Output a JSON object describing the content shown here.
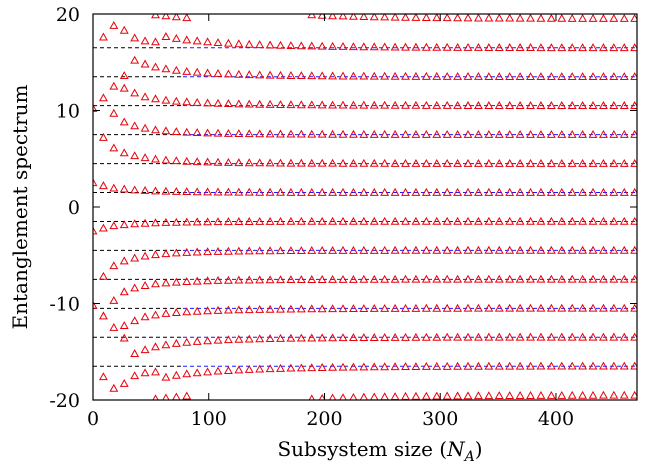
{
  "chart_data": {
    "type": "scatter",
    "xlabel_text": "Subsystem size (",
    "xlabel_symbol": "N",
    "xlabel_subscript": "A",
    "xlabel_close": ")",
    "ylabel": "Entanglement spectrum",
    "xlim": [
      0,
      470
    ],
    "ylim": [
      -20,
      20
    ],
    "x_ticks": [
      {
        "value": 0,
        "label": "0"
      },
      {
        "value": 100,
        "label": "100"
      },
      {
        "value": 200,
        "label": "200"
      },
      {
        "value": 300,
        "label": "300"
      },
      {
        "value": 400,
        "label": "400"
      }
    ],
    "y_ticks": [
      {
        "value": -20,
        "label": "-20"
      },
      {
        "value": -10,
        "label": "-10"
      },
      {
        "value": 0,
        "label": "0"
      },
      {
        "value": 10,
        "label": "10"
      },
      {
        "value": 20,
        "label": "20"
      }
    ],
    "grid": false,
    "marker_color": "#e8000b",
    "reference_line_color": "#1a1aff",
    "reference_line_alt_color": "#000000",
    "reference_levels": [
      -16.5,
      -13.5,
      -10.5,
      -7.5,
      -4.5,
      -1.5,
      1.5,
      4.5,
      7.5,
      10.5,
      13.5,
      16.5
    ],
    "x_sample_points": [
      0,
      9,
      18,
      27,
      36,
      45,
      54,
      63,
      72,
      81,
      90,
      99,
      108,
      117,
      126,
      135,
      144,
      153,
      162,
      171,
      180,
      189,
      198,
      207,
      216,
      225,
      234,
      243,
      252,
      261,
      270,
      279,
      288,
      297,
      306,
      315,
      324,
      333,
      342,
      351,
      360,
      369,
      378,
      387,
      396,
      405,
      414,
      423,
      432,
      441,
      450,
      459,
      468
    ],
    "series": [
      {
        "level": 1.5,
        "y": [
          2.5,
          2.2,
          1.95,
          1.85,
          1.75,
          1.7,
          1.65,
          1.62,
          1.6,
          1.58,
          1.56,
          1.55,
          1.54,
          1.53,
          1.52,
          1.52,
          1.51,
          1.51,
          1.51,
          1.5,
          1.5,
          1.5,
          1.5,
          1.5,
          1.5,
          1.5,
          1.5,
          1.5,
          1.5,
          1.5,
          1.5,
          1.5,
          1.5,
          1.5,
          1.5,
          1.5,
          1.5,
          1.5,
          1.5,
          1.5,
          1.5,
          1.5,
          1.5,
          1.5,
          1.5,
          1.5,
          1.5,
          1.5,
          1.5,
          1.5,
          1.5,
          1.5,
          1.5
        ]
      },
      {
        "level": -1.5,
        "y": [
          -2.5,
          -2.2,
          -1.95,
          -1.85,
          -1.75,
          -1.7,
          -1.65,
          -1.62,
          -1.6,
          -1.58,
          -1.56,
          -1.55,
          -1.54,
          -1.53,
          -1.52,
          -1.52,
          -1.51,
          -1.51,
          -1.51,
          -1.5,
          -1.5,
          -1.5,
          -1.5,
          -1.5,
          -1.5,
          -1.5,
          -1.5,
          -1.5,
          -1.5,
          -1.5,
          -1.5,
          -1.5,
          -1.5,
          -1.5,
          -1.5,
          -1.5,
          -1.5,
          -1.5,
          -1.5,
          -1.5,
          -1.5,
          -1.5,
          -1.5,
          -1.5,
          -1.5,
          -1.5,
          -1.5,
          -1.5,
          -1.5,
          -1.5,
          -1.5,
          -1.5,
          -1.5
        ]
      },
      {
        "level": 4.5,
        "y": [
          null,
          7.2,
          6.1,
          5.6,
          5.3,
          5.1,
          4.95,
          4.85,
          4.78,
          4.72,
          4.68,
          4.65,
          4.62,
          4.6,
          4.58,
          4.57,
          4.56,
          4.55,
          4.54,
          4.53,
          4.53,
          4.52,
          4.52,
          4.52,
          4.51,
          4.51,
          4.51,
          4.51,
          4.51,
          4.5,
          4.5,
          4.5,
          4.5,
          4.5,
          4.5,
          4.5,
          4.5,
          4.5,
          4.5,
          4.5,
          4.5,
          4.5,
          4.5,
          4.5,
          4.5,
          4.5,
          4.5,
          4.5,
          4.5,
          4.5,
          4.5,
          4.5,
          4.5
        ]
      },
      {
        "level": -4.5,
        "y": [
          null,
          -7.2,
          -6.1,
          -5.6,
          -5.3,
          -5.1,
          -4.95,
          -4.85,
          -4.78,
          -4.72,
          -4.68,
          -4.65,
          -4.62,
          -4.6,
          -4.58,
          -4.57,
          -4.56,
          -4.55,
          -4.54,
          -4.53,
          -4.53,
          -4.52,
          -4.52,
          -4.52,
          -4.51,
          -4.51,
          -4.51,
          -4.51,
          -4.51,
          -4.5,
          -4.5,
          -4.5,
          -4.5,
          -4.5,
          -4.5,
          -4.5,
          -4.5,
          -4.5,
          -4.5,
          -4.5,
          -4.5,
          -4.5,
          -4.5,
          -4.5,
          -4.5,
          -4.5,
          -4.5,
          -4.5,
          -4.5,
          -4.5,
          -4.5,
          -4.5,
          -4.5
        ]
      },
      {
        "level": 7.5,
        "y": [
          null,
          null,
          9.7,
          8.8,
          8.4,
          8.15,
          7.98,
          7.88,
          7.8,
          7.74,
          7.7,
          7.66,
          7.63,
          7.61,
          7.59,
          7.58,
          7.57,
          7.56,
          7.55,
          7.54,
          7.54,
          7.53,
          7.53,
          7.52,
          7.52,
          7.52,
          7.51,
          7.51,
          7.51,
          7.51,
          7.5,
          7.5,
          7.5,
          7.5,
          7.5,
          7.5,
          7.5,
          7.5,
          7.5,
          7.5,
          7.5,
          7.5,
          7.5,
          7.5,
          7.5,
          7.5,
          7.5,
          7.5,
          7.5,
          7.5,
          7.5,
          7.5,
          7.5
        ]
      },
      {
        "level": -7.5,
        "y": [
          null,
          null,
          -9.7,
          -8.8,
          -8.4,
          -8.15,
          -7.98,
          -7.88,
          -7.8,
          -7.74,
          -7.7,
          -7.66,
          -7.63,
          -7.61,
          -7.59,
          -7.58,
          -7.57,
          -7.56,
          -7.55,
          -7.54,
          -7.54,
          -7.53,
          -7.53,
          -7.52,
          -7.52,
          -7.52,
          -7.51,
          -7.51,
          -7.51,
          -7.51,
          -7.5,
          -7.5,
          -7.5,
          -7.5,
          -7.5,
          -7.5,
          -7.5,
          -7.5,
          -7.5,
          -7.5,
          -7.5,
          -7.5,
          -7.5,
          -7.5,
          -7.5,
          -7.5,
          -7.5,
          -7.5,
          -7.5,
          -7.5,
          -7.5,
          -7.5,
          -7.5
        ]
      },
      {
        "level": 10.5,
        "y": [
          10.2,
          11.3,
          12.5,
          12.3,
          11.8,
          11.4,
          11.2,
          11.05,
          10.95,
          10.88,
          10.82,
          10.77,
          10.73,
          10.7,
          10.67,
          10.65,
          10.63,
          10.62,
          10.6,
          10.59,
          10.58,
          10.57,
          10.56,
          10.55,
          10.55,
          10.54,
          10.54,
          10.53,
          10.53,
          10.52,
          10.52,
          10.52,
          10.51,
          10.51,
          10.51,
          10.51,
          10.5,
          10.5,
          10.5,
          10.5,
          10.5,
          10.5,
          10.5,
          10.5,
          10.5,
          10.5,
          10.5,
          10.5,
          10.5,
          10.5,
          10.5,
          10.5,
          10.5
        ]
      },
      {
        "level": -10.5,
        "y": [
          -10.2,
          -11.3,
          -12.5,
          -12.3,
          -11.8,
          -11.4,
          -11.2,
          -11.05,
          -10.95,
          -10.88,
          -10.82,
          -10.77,
          -10.73,
          -10.7,
          -10.67,
          -10.65,
          -10.63,
          -10.62,
          -10.6,
          -10.59,
          -10.58,
          -10.57,
          -10.56,
          -10.55,
          -10.55,
          -10.54,
          -10.54,
          -10.53,
          -10.53,
          -10.52,
          -10.52,
          -10.52,
          -10.51,
          -10.51,
          -10.51,
          -10.51,
          -10.5,
          -10.5,
          -10.5,
          -10.5,
          -10.5,
          -10.5,
          -10.5,
          -10.5,
          -10.5,
          -10.5,
          -10.5,
          -10.5,
          -10.5,
          -10.5,
          -10.5,
          -10.5,
          -10.5
        ]
      },
      {
        "level": 13.5,
        "y": [
          null,
          null,
          null,
          13.6,
          15.2,
          14.8,
          14.5,
          14.3,
          14.15,
          14.03,
          13.95,
          13.88,
          13.82,
          13.77,
          13.73,
          13.7,
          13.67,
          13.65,
          13.63,
          13.61,
          13.6,
          13.59,
          13.58,
          13.57,
          13.56,
          13.55,
          13.55,
          13.54,
          13.54,
          13.53,
          13.53,
          13.52,
          13.52,
          13.52,
          13.51,
          13.51,
          13.51,
          13.51,
          13.5,
          13.5,
          13.5,
          13.5,
          13.5,
          13.5,
          13.5,
          13.5,
          13.5,
          13.5,
          13.5,
          13.5,
          13.5,
          13.5,
          13.5
        ]
      },
      {
        "level": -13.5,
        "y": [
          null,
          null,
          null,
          -13.6,
          -15.2,
          -14.8,
          -14.5,
          -14.3,
          -14.15,
          -14.03,
          -13.95,
          -13.88,
          -13.82,
          -13.77,
          -13.73,
          -13.7,
          -13.67,
          -13.65,
          -13.63,
          -13.61,
          -13.6,
          -13.59,
          -13.58,
          -13.57,
          -13.56,
          -13.55,
          -13.55,
          -13.54,
          -13.54,
          -13.53,
          -13.53,
          -13.52,
          -13.52,
          -13.52,
          -13.51,
          -13.51,
          -13.51,
          -13.51,
          -13.5,
          -13.5,
          -13.5,
          -13.5,
          -13.5,
          -13.5,
          -13.5,
          -13.5,
          -13.5,
          -13.5,
          -13.5,
          -13.5,
          -13.5,
          -13.5,
          -13.5
        ]
      },
      {
        "level": 16.5,
        "y": [
          null,
          17.6,
          null,
          18.3,
          17.5,
          17.2,
          17.1,
          17.65,
          17.45,
          17.3,
          17.2,
          17.1,
          17.02,
          16.96,
          16.9,
          16.85,
          16.81,
          16.77,
          16.74,
          16.71,
          16.69,
          16.67,
          16.65,
          16.63,
          16.62,
          16.6,
          16.59,
          16.58,
          16.57,
          16.56,
          16.55,
          16.55,
          16.54,
          16.53,
          16.53,
          16.52,
          16.52,
          16.52,
          16.51,
          16.51,
          16.51,
          16.51,
          16.51,
          16.5,
          16.5,
          16.5,
          16.5,
          16.5,
          16.5,
          16.5,
          16.5,
          16.5,
          16.5
        ]
      },
      {
        "level": -16.5,
        "y": [
          null,
          -17.6,
          null,
          -18.3,
          -17.5,
          -17.2,
          -17.1,
          -17.65,
          -17.45,
          -17.3,
          -17.2,
          -17.1,
          -17.02,
          -16.96,
          -16.9,
          -16.85,
          -16.81,
          -16.77,
          -16.74,
          -16.71,
          -16.69,
          -16.67,
          -16.65,
          -16.63,
          -16.62,
          -16.6,
          -16.59,
          -16.58,
          -16.57,
          -16.56,
          -16.55,
          -16.55,
          -16.54,
          -16.53,
          -16.53,
          -16.52,
          -16.52,
          -16.52,
          -16.51,
          -16.51,
          -16.51,
          -16.51,
          -16.51,
          -16.5,
          -16.5,
          -16.5,
          -16.5,
          -16.5,
          -16.5,
          -16.5,
          -16.5,
          -16.5,
          -16.5
        ]
      },
      {
        "level": 19.5,
        "y": [
          null,
          null,
          18.8,
          null,
          null,
          null,
          19.9,
          19.8,
          19.7,
          19.6,
          null,
          null,
          null,
          null,
          null,
          null,
          null,
          null,
          null,
          null,
          null,
          19.9,
          19.85,
          19.8,
          19.78,
          19.75,
          19.72,
          19.7,
          19.68,
          19.66,
          19.64,
          19.63,
          19.62,
          19.61,
          19.6,
          19.59,
          19.58,
          19.57,
          19.57,
          19.56,
          19.56,
          19.55,
          19.55,
          19.54,
          19.54,
          19.54,
          19.53,
          19.53,
          19.53,
          19.52,
          19.52,
          19.52,
          19.52
        ]
      },
      {
        "level": -19.5,
        "y": [
          null,
          null,
          -18.8,
          null,
          null,
          null,
          -19.9,
          -19.8,
          -19.7,
          -19.6,
          null,
          null,
          null,
          null,
          null,
          null,
          null,
          null,
          null,
          null,
          null,
          -19.9,
          -19.85,
          -19.8,
          -19.78,
          -19.75,
          -19.72,
          -19.7,
          -19.68,
          -19.66,
          -19.64,
          -19.63,
          -19.62,
          -19.61,
          -19.6,
          -19.59,
          -19.58,
          -19.57,
          -19.57,
          -19.56,
          -19.56,
          -19.55,
          -19.55,
          -19.54,
          -19.54,
          -19.54,
          -19.53,
          -19.53,
          -19.53,
          -19.52,
          -19.52,
          -19.52,
          -19.52
        ]
      }
    ]
  }
}
